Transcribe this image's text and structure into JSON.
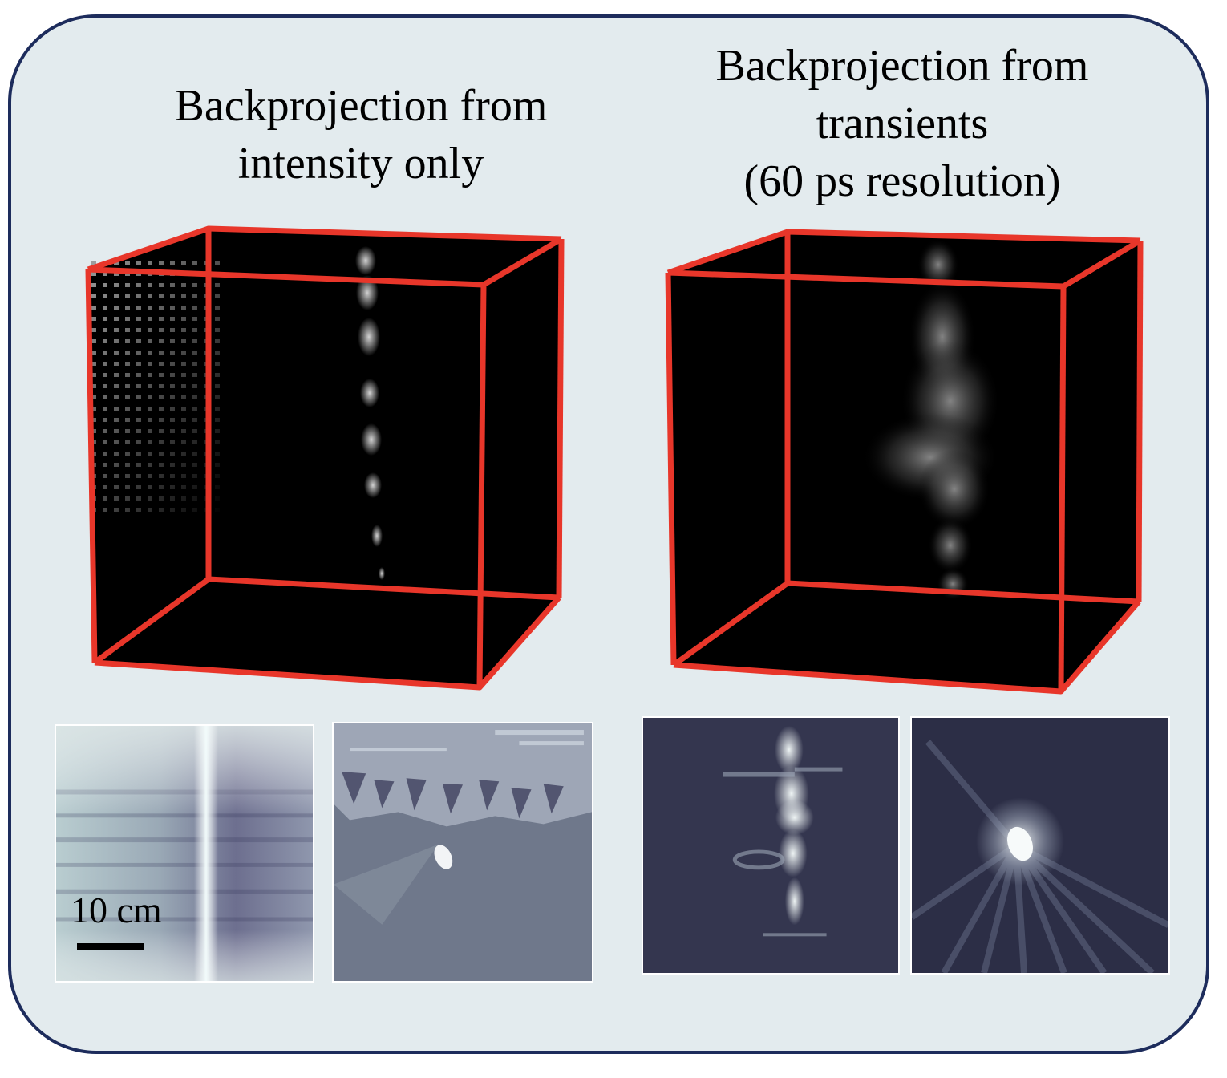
{
  "panels": {
    "left": {
      "title": "Backprojection from\nintensity only"
    },
    "right": {
      "title": "Backprojection from\ntransients\n(60 ps resolution)"
    }
  },
  "scale_bar": {
    "label": "10 cm"
  },
  "colors": {
    "frame_background": "#e3ebee",
    "frame_border": "#1d2c5c",
    "cube_edges": "#e8362a",
    "volume_background": "#000000"
  }
}
